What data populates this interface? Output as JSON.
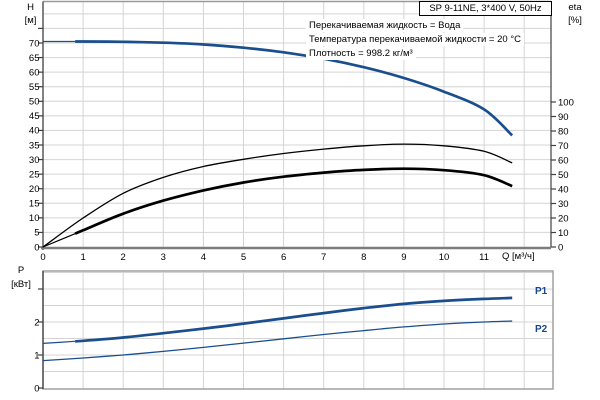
{
  "header": {
    "title": "SP 9-11NE, 3*400 V, 50Hz"
  },
  "annotations": {
    "line1": "Перекачиваемая жидкость = Вода",
    "line2": "Температура перекачиваемой жидкости = 20 °C",
    "line3": "Плотность = 998.2 кг/м³"
  },
  "axis_labels": {
    "h_symbol": "H",
    "h_unit": "[м]",
    "eta_symbol": "eta",
    "eta_unit": "[%]",
    "p_symbol": "P",
    "p_unit": "[кВт]",
    "q_label": "Q [м³/ч]"
  },
  "colors": {
    "curve_blue": "#1a4e8c",
    "curve_black": "#000000",
    "label_blue": "#17458f",
    "grid": "#d4d4d4",
    "axis_dark": "#3f3f3f",
    "frame_gray": "#9a9a9a",
    "baseline_gray": "#7d7d7d"
  },
  "chart_data": [
    {
      "name": "head-and-efficiency-chart",
      "type": "line",
      "title": "SP 9-11NE, 3*400 V, 50Hz",
      "grid": true,
      "xlabel": "Q [м³/ч]",
      "x_ticks": [
        0,
        1,
        2,
        3,
        4,
        5,
        6,
        7,
        8,
        9,
        10,
        11
      ],
      "x_grid_max": 12,
      "x_range": [
        0,
        12.67
      ],
      "y_left": {
        "label": "H [м]",
        "ticks": [
          0,
          5,
          10,
          15,
          20,
          25,
          30,
          35,
          40,
          45,
          50,
          55,
          60,
          65,
          70
        ],
        "minor_ticks": [
          75
        ],
        "range": [
          0,
          84.2
        ]
      },
      "y_right": {
        "label": "eta [%]",
        "ticks": [
          0,
          10,
          20,
          30,
          40,
          50,
          60,
          70,
          80,
          90,
          100
        ],
        "range": [
          0,
          169.3
        ]
      },
      "series": [
        {
          "name": "H",
          "axis": "left",
          "color": "#1a4e8c",
          "style": "thick-after-0.8",
          "x": [
            0,
            1,
            2,
            3,
            4,
            5,
            6,
            7,
            8,
            9,
            10,
            11,
            11.7
          ],
          "values": [
            70.5,
            70.5,
            70.4,
            70.1,
            69.5,
            68.4,
            66.8,
            64.6,
            61.7,
            58.0,
            53.3,
            47.2,
            38.3
          ]
        },
        {
          "name": "eta-thin",
          "axis": "right",
          "color": "#000000",
          "style": "thin",
          "x": [
            0,
            1,
            2,
            3,
            4,
            5,
            6,
            7,
            8,
            9,
            10,
            11,
            11.7
          ],
          "values": [
            0,
            20,
            37,
            48,
            55.5,
            60.5,
            64.5,
            67.5,
            69.8,
            71.0,
            69.8,
            66.0,
            58.0
          ]
        },
        {
          "name": "eta-thick",
          "axis": "right",
          "color": "#000000",
          "style": "thick-after-0.8",
          "x": [
            0,
            1,
            2,
            3,
            4,
            5,
            6,
            7,
            8,
            9,
            10,
            11,
            11.7
          ],
          "values": [
            0,
            11.5,
            23,
            32,
            39,
            44.5,
            48.5,
            51.3,
            53.2,
            54.0,
            53.0,
            49.5,
            42.0
          ]
        }
      ]
    },
    {
      "name": "power-chart",
      "type": "line",
      "grid": true,
      "x_range": [
        0,
        12.72
      ],
      "x_grid_max": 12,
      "y_left": {
        "label": "P [кВт]",
        "ticks": [
          0,
          1,
          2
        ],
        "minor_ticks": [
          3
        ],
        "grid_step": 0.5,
        "range": [
          0,
          3.55
        ]
      },
      "series": [
        {
          "name": "P1",
          "label": "P1",
          "axis": "left",
          "color": "#1a4e8c",
          "style": "thick-after-0.8",
          "x": [
            0,
            1,
            2,
            3,
            4,
            5,
            6,
            7,
            8,
            9,
            10,
            11,
            11.7
          ],
          "values": [
            1.35,
            1.43,
            1.53,
            1.66,
            1.8,
            1.95,
            2.11,
            2.27,
            2.42,
            2.55,
            2.64,
            2.7,
            2.73
          ]
        },
        {
          "name": "P2",
          "label": "P2",
          "axis": "left",
          "color": "#1a4e8c",
          "style": "thin",
          "x": [
            0,
            1,
            2,
            3,
            4,
            5,
            6,
            7,
            8,
            9,
            10,
            11,
            11.7
          ],
          "values": [
            0.83,
            0.91,
            1.0,
            1.11,
            1.23,
            1.36,
            1.49,
            1.62,
            1.74,
            1.85,
            1.94,
            2.0,
            2.03
          ]
        }
      ]
    }
  ]
}
